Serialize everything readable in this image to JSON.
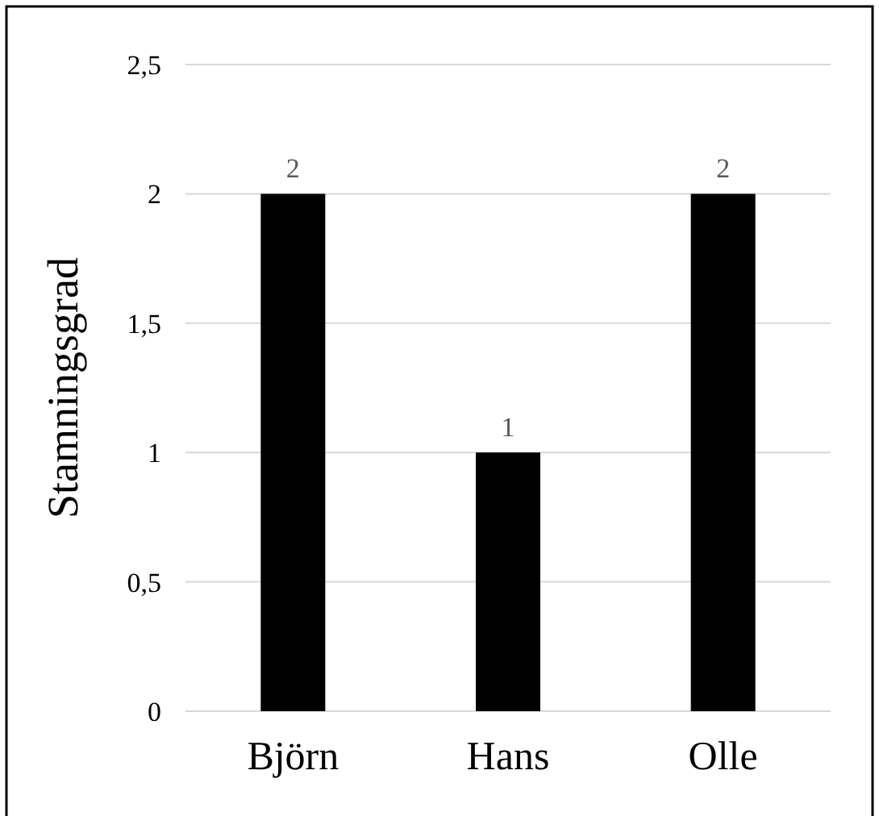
{
  "chart_data": {
    "type": "bar",
    "ylabel": "Stamningsgrad",
    "categories": [
      "Björn",
      "Hans",
      "Olle"
    ],
    "values": [
      2,
      1,
      2
    ],
    "color": "#000000",
    "ylim": [
      0,
      2.5
    ],
    "yticks": [
      0,
      {
        "value": 0.5,
        "label": "0,5"
      },
      1,
      {
        "value": 1.5,
        "label": "1,5"
      },
      2,
      {
        "value": 2.5,
        "label": "2,5"
      }
    ],
    "grid": "y",
    "data_labels": true
  }
}
